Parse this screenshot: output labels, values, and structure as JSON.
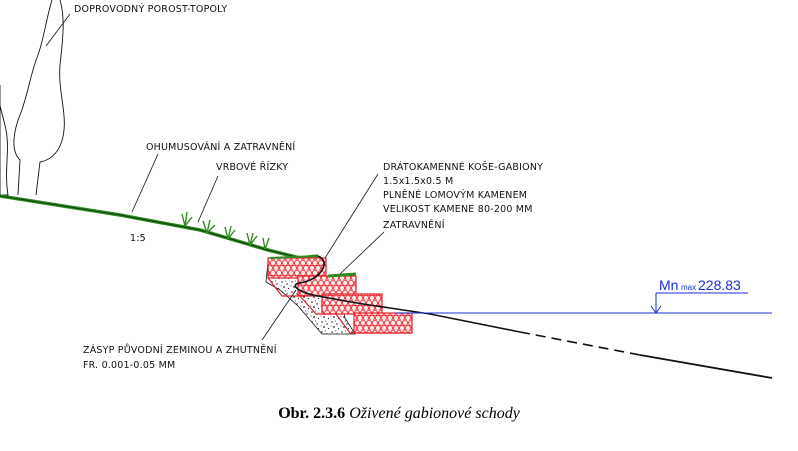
{
  "labels": {
    "trees": "DOPROVODNÝ POROST-TOPOLY",
    "humus": "OHUMUSOVÁNÍ A ZATRAVNĚNÍ",
    "willow": "VRBOVÉ ŘÍZKY",
    "slope": "1:5",
    "gabion_1": "DRÁTOKAMENNÉ KOŠE-GABIONY",
    "gabion_2": "1.5x1.5x0.5 M",
    "gabion_3": "PLNĚNÉ LOMOVÝM KAMENEM",
    "gabion_4": "VELIKOST KAMENE 80-200 MM",
    "gabion_5": "ZATRAVNĚNÍ",
    "backfill_1": "ZÁSYP PŮVODNÍ ZEMINOU A ZHUTNĚNÍ",
    "backfill_2": "FR. 0.001-0.05 MM"
  },
  "water_level": {
    "symbol": "Mn",
    "subscript": "max",
    "value": "228.83"
  },
  "caption": {
    "number": "Obr. 2.3.6",
    "title": "Oživené gabionové schody"
  },
  "colors": {
    "gabion": "#e8202a",
    "grass": "#2e8b1e",
    "water": "#1a2fd6"
  }
}
